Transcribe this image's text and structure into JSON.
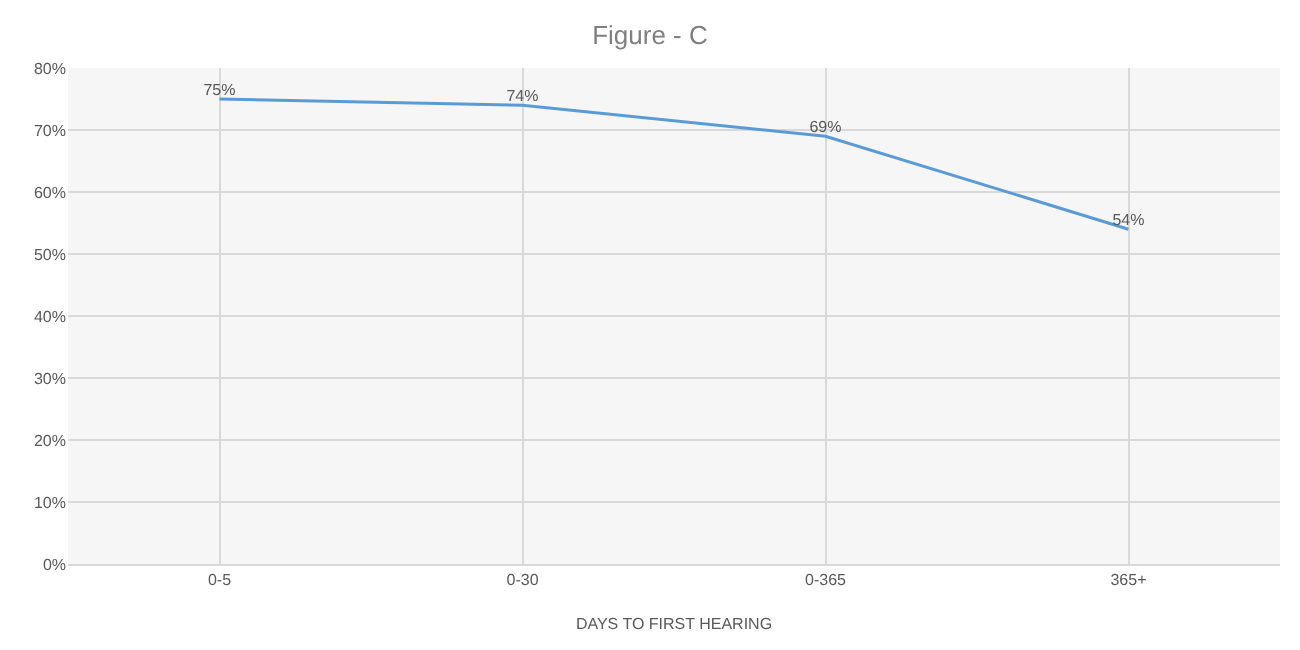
{
  "chart_data": {
    "type": "line",
    "title": "Figure - C",
    "xlabel": "DAYS TO FIRST HEARING",
    "categories": [
      "0-5",
      "0-30",
      "0-365",
      "365+"
    ],
    "series": [
      {
        "color": "#5b9bd5",
        "values": [
          75,
          74,
          69,
          54
        ],
        "value_labels": [
          "75%",
          "74%",
          "69%",
          "54%"
        ]
      }
    ],
    "ylim": [
      0,
      80
    ],
    "yticks": [
      {
        "value": 0,
        "label": "0%"
      },
      {
        "value": 10,
        "label": "10%"
      },
      {
        "value": 20,
        "label": "20%"
      },
      {
        "value": 30,
        "label": "30%"
      },
      {
        "value": 40,
        "label": "40%"
      },
      {
        "value": 50,
        "label": "50%"
      },
      {
        "value": 60,
        "label": "60%"
      },
      {
        "value": 70,
        "label": "70%"
      },
      {
        "value": 80,
        "label": "80%"
      }
    ],
    "grid": true,
    "marker": "none",
    "line_style": "solid"
  }
}
